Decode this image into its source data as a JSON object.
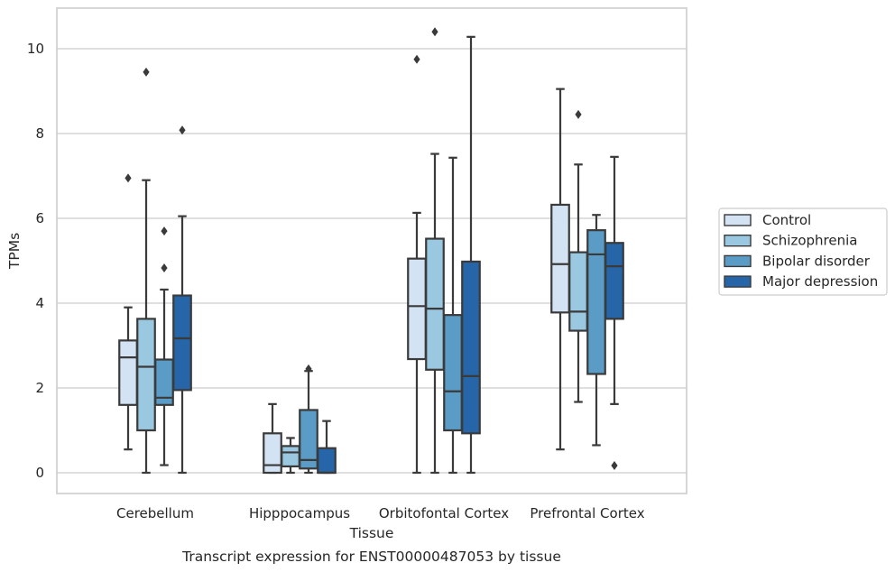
{
  "chart_data": {
    "type": "box",
    "title": "Transcript expression for ENST00000487053 by tissue",
    "xlabel": "Tissue",
    "ylabel": "TPMs",
    "ylim": [
      -0.5,
      10.9
    ],
    "yticks": [
      0,
      2,
      4,
      6,
      8,
      10
    ],
    "grid": "horizontal",
    "legend_position": "right",
    "categories": [
      "Cerebellum",
      "Hipppocampus",
      "Orbitofontal Cortex",
      "Prefrontal Cortex"
    ],
    "series": [
      {
        "name": "Control",
        "color": "#d3e3f3",
        "boxes": [
          {
            "whisker_low": 0.55,
            "q1": 1.6,
            "median": 2.72,
            "q3": 3.12,
            "whisker_high": 3.9,
            "outliers": [
              6.95
            ]
          },
          {
            "whisker_low": 0.0,
            "q1": 0.0,
            "median": 0.18,
            "q3": 0.93,
            "whisker_high": 1.62,
            "outliers": []
          },
          {
            "whisker_low": 0.0,
            "q1": 2.68,
            "median": 3.93,
            "q3": 5.05,
            "whisker_high": 6.13,
            "outliers": [
              9.75
            ]
          },
          {
            "whisker_low": 0.55,
            "q1": 3.78,
            "median": 4.92,
            "q3": 6.32,
            "whisker_high": 9.05,
            "outliers": []
          }
        ]
      },
      {
        "name": "Schizophrenia",
        "color": "#9ac8e0",
        "boxes": [
          {
            "whisker_low": 0.0,
            "q1": 1.0,
            "median": 2.5,
            "q3": 3.63,
            "whisker_high": 6.9,
            "outliers": [
              9.45
            ]
          },
          {
            "whisker_low": 0.0,
            "q1": 0.15,
            "median": 0.48,
            "q3": 0.63,
            "whisker_high": 0.82,
            "outliers": []
          },
          {
            "whisker_low": 0.0,
            "q1": 2.43,
            "median": 3.87,
            "q3": 5.52,
            "whisker_high": 7.52,
            "outliers": [
              10.4
            ]
          },
          {
            "whisker_low": 1.67,
            "q1": 3.35,
            "median": 3.8,
            "q3": 5.2,
            "whisker_high": 7.27,
            "outliers": [
              8.45
            ]
          }
        ]
      },
      {
        "name": "Bipolar disorder",
        "color": "#5a9cc6",
        "boxes": [
          {
            "whisker_low": 0.18,
            "q1": 1.6,
            "median": 1.77,
            "q3": 2.67,
            "whisker_high": 4.32,
            "outliers": [
              5.7,
              4.83
            ]
          },
          {
            "whisker_low": 0.0,
            "q1": 0.1,
            "median": 0.3,
            "q3": 1.48,
            "whisker_high": 2.4,
            "outliers": [
              2.45
            ]
          },
          {
            "whisker_low": 0.0,
            "q1": 1.0,
            "median": 1.92,
            "q3": 3.72,
            "whisker_high": 7.43,
            "outliers": []
          },
          {
            "whisker_low": 0.65,
            "q1": 2.33,
            "median": 5.15,
            "q3": 5.72,
            "whisker_high": 6.08,
            "outliers": []
          }
        ]
      },
      {
        "name": "Major depression",
        "color": "#2665a8",
        "boxes": [
          {
            "whisker_low": 0.0,
            "q1": 1.95,
            "median": 3.17,
            "q3": 4.18,
            "whisker_high": 6.05,
            "outliers": [
              8.08
            ]
          },
          {
            "whisker_low": 0.0,
            "q1": 0.0,
            "median": 0.0,
            "q3": 0.58,
            "whisker_high": 1.22,
            "outliers": []
          },
          {
            "whisker_low": 0.0,
            "q1": 0.93,
            "median": 2.28,
            "q3": 4.98,
            "whisker_high": 10.28,
            "outliers": []
          },
          {
            "whisker_low": 1.62,
            "q1": 3.63,
            "median": 4.87,
            "q3": 5.42,
            "whisker_high": 7.45,
            "outliers": [
              0.17
            ]
          }
        ]
      }
    ]
  }
}
